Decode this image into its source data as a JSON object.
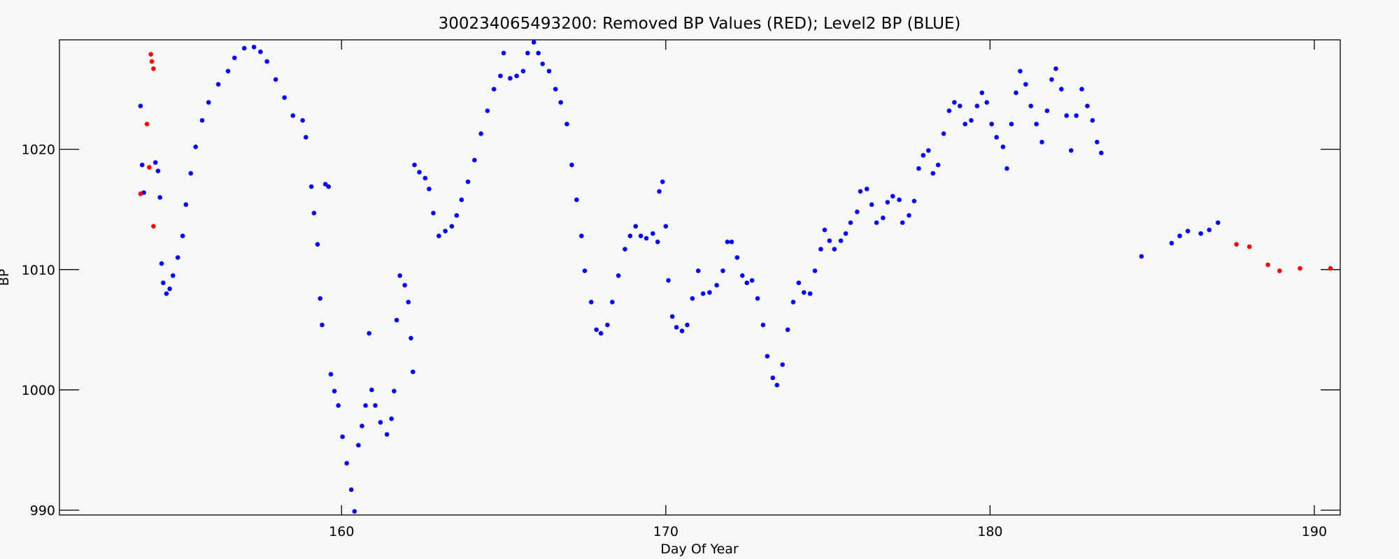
{
  "chart_data": {
    "type": "scatter",
    "title": "300234065493200: Removed BP Values (RED); Level2 BP (BLUE)",
    "x_label": "Day Of Year",
    "y_label": "BP",
    "xlim": [
      151.3,
      190.8
    ],
    "ylim": [
      989.6,
      1029.1
    ],
    "xticks": [
      160,
      170,
      180,
      190
    ],
    "yticks": [
      990,
      1000,
      1010,
      1020
    ],
    "grid": false,
    "series": [
      {
        "color": "#0000ff",
        "x": [
          153.8,
          153.85,
          153.9,
          154.26,
          154.34,
          154.4,
          154.45,
          154.5,
          154.6,
          154.7,
          154.8,
          154.95,
          155.1,
          155.2,
          155.35,
          155.5,
          155.7,
          155.9,
          156.2,
          156.5,
          156.7,
          157.0,
          157.3,
          157.5,
          157.7,
          157.97,
          158.24,
          158.5,
          158.8,
          158.9,
          159.07,
          159.15,
          159.26,
          159.34,
          159.4,
          159.5,
          159.6,
          159.67,
          159.78,
          159.9,
          160.03,
          160.16,
          160.3,
          160.4,
          160.52,
          160.63,
          160.74,
          160.85,
          160.93,
          161.04,
          161.2,
          161.4,
          161.54,
          161.62,
          161.7,
          161.8,
          161.95,
          162.06,
          162.14,
          162.2,
          162.25,
          162.4,
          162.58,
          162.7,
          162.83,
          163.0,
          163.2,
          163.4,
          163.55,
          163.7,
          163.9,
          164.1,
          164.3,
          164.5,
          164.7,
          164.9,
          165.0,
          165.2,
          165.4,
          165.6,
          165.74,
          165.93,
          166.07,
          166.2,
          166.4,
          166.6,
          166.76,
          166.95,
          167.1,
          167.25,
          167.4,
          167.5,
          167.7,
          167.86,
          168.0,
          168.2,
          168.35,
          168.54,
          168.74,
          168.9,
          169.07,
          169.23,
          169.4,
          169.6,
          169.75,
          169.8,
          169.9,
          170.0,
          170.08,
          170.2,
          170.33,
          170.5,
          170.66,
          170.82,
          171.0,
          171.15,
          171.35,
          171.57,
          171.76,
          171.9,
          172.03,
          172.2,
          172.36,
          172.5,
          172.66,
          172.83,
          173.0,
          173.13,
          173.3,
          173.43,
          173.6,
          173.76,
          173.93,
          174.1,
          174.26,
          174.45,
          174.6,
          174.78,
          174.9,
          175.05,
          175.2,
          175.4,
          175.55,
          175.7,
          175.9,
          176.0,
          176.2,
          176.35,
          176.5,
          176.7,
          176.84,
          177.0,
          177.2,
          177.3,
          177.5,
          177.66,
          177.8,
          177.94,
          178.1,
          178.24,
          178.4,
          178.57,
          178.74,
          178.9,
          179.07,
          179.23,
          179.42,
          179.6,
          179.75,
          179.9,
          180.05,
          180.2,
          180.4,
          180.52,
          180.66,
          180.8,
          180.93,
          181.1,
          181.26,
          181.43,
          181.6,
          181.76,
          181.9,
          182.03,
          182.2,
          182.36,
          182.5,
          182.66,
          182.83,
          183.0,
          183.16,
          183.3,
          183.43,
          184.67,
          185.6,
          185.85,
          186.1,
          186.5,
          186.76,
          187.03
        ],
        "values": [
          1023.6,
          1018.7,
          1016.4,
          1018.9,
          1018.2,
          1016,
          1010.5,
          1008.9,
          1008,
          1008.4,
          1009.5,
          1011,
          1012.8,
          1015.4,
          1018,
          1020.2,
          1022.4,
          1023.9,
          1025.4,
          1026.5,
          1027.6,
          1028.4,
          1028.5,
          1028.1,
          1027.3,
          1025.8,
          1024.3,
          1022.8,
          1022.4,
          1021,
          1016.9,
          1014.7,
          1012.1,
          1007.6,
          1005.4,
          1017.1,
          1016.9,
          1001.3,
          999.9,
          998.7,
          996.1,
          993.9,
          991.7,
          989.9,
          995.4,
          997,
          998.7,
          1004.7,
          1000,
          998.7,
          997.3,
          996.3,
          997.6,
          999.9,
          1005.8,
          1009.5,
          1008.7,
          1007.3,
          1004.3,
          1001.5,
          1018.7,
          1018.1,
          1017.6,
          1016.7,
          1014.7,
          1012.8,
          1013.2,
          1013.6,
          1014.5,
          1015.8,
          1017.3,
          1019.1,
          1021.3,
          1023.2,
          1025,
          1026.1,
          1028,
          1025.9,
          1026.1,
          1026.5,
          1028,
          1028.9,
          1028,
          1027.1,
          1026.5,
          1025,
          1023.9,
          1022.1,
          1018.7,
          1015.8,
          1012.8,
          1009.9,
          1007.3,
          1005,
          1004.7,
          1005.4,
          1007.3,
          1009.5,
          1011.7,
          1012.8,
          1013.6,
          1012.8,
          1012.6,
          1013,
          1012.3,
          1016.5,
          1017.3,
          1013.6,
          1009.1,
          1006.1,
          1005.2,
          1004.9,
          1005.4,
          1007.6,
          1009.9,
          1008,
          1008.1,
          1008.7,
          1009.9,
          1012.3,
          1012.3,
          1011,
          1009.5,
          1008.9,
          1009.1,
          1007.6,
          1005.4,
          1002.8,
          1001,
          1000.4,
          1002.1,
          1005,
          1007.3,
          1008.9,
          1008.1,
          1008,
          1009.9,
          1011.7,
          1013.3,
          1012.4,
          1011.7,
          1012.4,
          1013,
          1013.9,
          1014.8,
          1016.5,
          1016.7,
          1015.4,
          1013.9,
          1014.3,
          1015.6,
          1016.1,
          1015.8,
          1013.9,
          1014.5,
          1015.7,
          1018.4,
          1019.5,
          1019.9,
          1018,
          1018.7,
          1021.3,
          1023.2,
          1023.9,
          1023.6,
          1022.1,
          1022.4,
          1023.6,
          1024.7,
          1023.9,
          1022.1,
          1021,
          1020.2,
          1018.4,
          1022.1,
          1024.7,
          1026.5,
          1025.4,
          1023.6,
          1022.1,
          1020.6,
          1023.2,
          1025.8,
          1026.7,
          1025,
          1022.8,
          1019.9,
          1022.8,
          1025,
          1023.6,
          1022.4,
          1020.6,
          1019.7,
          1011.1,
          1012.2,
          1012.8,
          1013.2,
          1013,
          1013.3,
          1013.9
        ]
      },
      {
        "color": "#ff0000",
        "x": [
          153.8,
          154.0,
          154.07,
          154.12,
          154.15,
          154.2,
          154.2,
          187.6,
          188.0,
          188.57,
          188.93,
          189.56,
          190.5
        ],
        "values": [
          1016.3,
          1022.1,
          1018.5,
          1027.9,
          1027.3,
          1026.7,
          1013.6,
          1012.1,
          1011.9,
          1010.4,
          1009.9,
          1010.1,
          1010.1
        ]
      }
    ]
  }
}
